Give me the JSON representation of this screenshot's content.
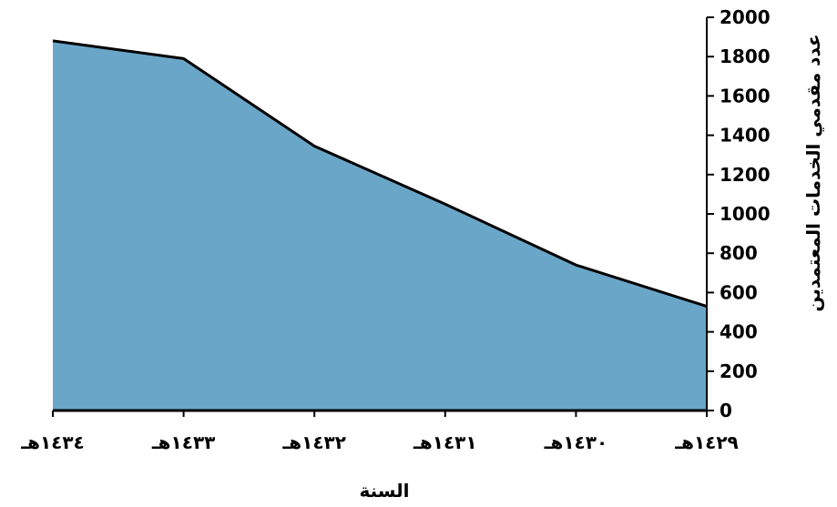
{
  "chart_data": {
    "type": "area",
    "categories": [
      "١٤٣٤هـ",
      "١٤٣٣هـ",
      "١٤٣٢هـ",
      "١٤٣١هـ",
      "١٤٣٠هـ",
      "١٤٢٩هـ"
    ],
    "series": [
      {
        "values": [
          1880,
          1790,
          1345,
          1050,
          740,
          530
        ]
      }
    ],
    "xlabel": "السنة",
    "ylabel": "عدد مقدمي الخدمات المعتمدين",
    "ylim": [
      0,
      2000
    ],
    "yticks": [
      "0",
      "200",
      "400",
      "600",
      "800",
      "1000",
      "1200",
      "1400",
      "1600",
      "1800",
      "2000"
    ],
    "y_axis_side": "right",
    "grid": false,
    "legend": "none",
    "colors": {
      "fill": "#6aa6c7",
      "stroke": "#000000"
    }
  }
}
